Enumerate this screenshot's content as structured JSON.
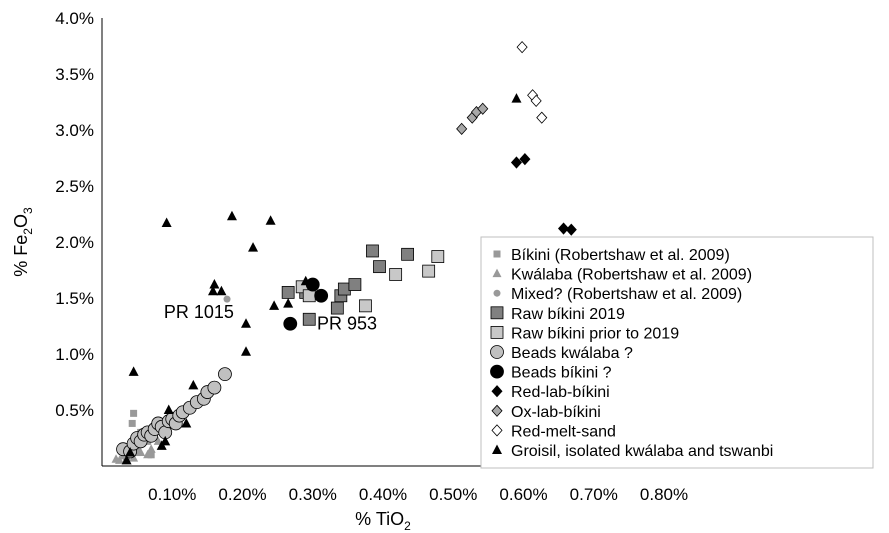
{
  "chart_data": {
    "type": "scatter",
    "xlabel": "% TiO",
    "xlabel_sub": "2",
    "ylabel": "% Fe",
    "ylabel_sub1": "2",
    "ylabel_mid": "O",
    "ylabel_sub2": "3",
    "xlim": [
      0,
      0.8
    ],
    "ylim": [
      0,
      4.0
    ],
    "x_ticks": [
      0.1,
      0.2,
      0.3,
      0.4,
      0.5,
      0.6,
      0.7,
      0.8
    ],
    "x_tick_labels": [
      "0.10%",
      "0.20%",
      "0.30%",
      "0.40%",
      "0.50%",
      "0.60%",
      "0.70%",
      "0.80%"
    ],
    "y_ticks": [
      0.5,
      1.0,
      1.5,
      2.0,
      2.5,
      3.0,
      3.5,
      4.0
    ],
    "y_tick_labels": [
      "0.5%",
      "1.0%",
      "1.5%",
      "2.0%",
      "2.5%",
      "3.0%",
      "3.5%",
      "4.0%"
    ],
    "grid": false,
    "legend_position": "right",
    "annotations": [
      {
        "text": "PR 1015",
        "x": 0.088,
        "y": 1.32
      },
      {
        "text": "PR 953",
        "x": 0.306,
        "y": 1.22
      }
    ],
    "series": [
      {
        "name": "Bíkini (Robertshaw et al. 2009)",
        "marker": "small-square",
        "color": "#999999",
        "points": [
          [
            0.045,
            0.47
          ],
          [
            0.043,
            0.38
          ],
          [
            0.055,
            0.3
          ],
          [
            0.06,
            0.25
          ],
          [
            0.04,
            0.15
          ],
          [
            0.05,
            0.12
          ],
          [
            0.065,
            0.22
          ],
          [
            0.075,
            0.35
          ],
          [
            0.07,
            0.1
          ],
          [
            0.035,
            0.08
          ]
        ]
      },
      {
        "name": "Kwálaba (Robertshaw et al. 2009)",
        "marker": "small-triangle",
        "color": "#999999",
        "points": [
          [
            0.02,
            0.06
          ],
          [
            0.025,
            0.05
          ],
          [
            0.03,
            0.09
          ],
          [
            0.045,
            0.07
          ],
          [
            0.055,
            0.12
          ],
          [
            0.065,
            0.1
          ],
          [
            0.04,
            0.2
          ],
          [
            0.05,
            0.18
          ],
          [
            0.07,
            0.15
          ],
          [
            0.08,
            0.22
          ]
        ]
      },
      {
        "name": "Mixed? (Robertshaw et al. 2009)",
        "marker": "small-circle",
        "color": "#999999",
        "points": [
          [
            0.178,
            1.49
          ]
        ]
      },
      {
        "name": "Raw bíkini 2019",
        "marker": "square",
        "color": "#808080",
        "points": [
          [
            0.265,
            1.55
          ],
          [
            0.29,
            1.55
          ],
          [
            0.295,
            1.31
          ],
          [
            0.335,
            1.41
          ],
          [
            0.34,
            1.52
          ],
          [
            0.345,
            1.58
          ],
          [
            0.36,
            1.62
          ],
          [
            0.385,
            1.92
          ],
          [
            0.395,
            1.78
          ],
          [
            0.435,
            1.89
          ]
        ]
      },
      {
        "name": "Raw bíkini prior to 2019",
        "marker": "square",
        "color": "#c8c8c8",
        "points": [
          [
            0.285,
            1.6
          ],
          [
            0.295,
            1.52
          ],
          [
            0.375,
            1.43
          ],
          [
            0.418,
            1.71
          ],
          [
            0.465,
            1.74
          ],
          [
            0.478,
            1.87
          ]
        ]
      },
      {
        "name": "Beads kwálaba ?",
        "marker": "circle",
        "color": "#c0c0c0",
        "points": [
          [
            0.03,
            0.15
          ],
          [
            0.04,
            0.13
          ],
          [
            0.045,
            0.2
          ],
          [
            0.05,
            0.25
          ],
          [
            0.055,
            0.22
          ],
          [
            0.06,
            0.28
          ],
          [
            0.065,
            0.3
          ],
          [
            0.07,
            0.27
          ],
          [
            0.075,
            0.33
          ],
          [
            0.08,
            0.38
          ],
          [
            0.085,
            0.35
          ],
          [
            0.09,
            0.3
          ],
          [
            0.095,
            0.4
          ],
          [
            0.1,
            0.42
          ],
          [
            0.105,
            0.38
          ],
          [
            0.11,
            0.45
          ],
          [
            0.115,
            0.48
          ],
          [
            0.125,
            0.52
          ],
          [
            0.135,
            0.57
          ],
          [
            0.145,
            0.6
          ],
          [
            0.15,
            0.66
          ],
          [
            0.16,
            0.7
          ],
          [
            0.175,
            0.82
          ]
        ]
      },
      {
        "name": "Beads bíkini ?",
        "marker": "circle",
        "color": "#000000",
        "points": [
          [
            0.268,
            1.27
          ],
          [
            0.3,
            1.62
          ],
          [
            0.312,
            1.52
          ]
        ]
      },
      {
        "name": "Red-lab-bíkini",
        "marker": "diamond",
        "color": "#000000",
        "points": [
          [
            0.59,
            2.71
          ],
          [
            0.602,
            2.74
          ],
          [
            0.657,
            2.12
          ],
          [
            0.668,
            2.11
          ]
        ]
      },
      {
        "name": "Ox-lab-bíkini",
        "marker": "diamond",
        "color": "#a8a8a8",
        "points": [
          [
            0.512,
            3.01
          ],
          [
            0.527,
            3.11
          ],
          [
            0.533,
            3.16
          ],
          [
            0.542,
            3.19
          ]
        ]
      },
      {
        "name": "Red-melt-sand",
        "marker": "diamond",
        "color": "#ffffff",
        "points": [
          [
            0.598,
            3.74
          ],
          [
            0.613,
            3.31
          ],
          [
            0.618,
            3.26
          ],
          [
            0.626,
            3.11
          ]
        ]
      },
      {
        "name": "Groisil, isolated kwálaba and tswanbi",
        "marker": "triangle",
        "color": "#000000",
        "points": [
          [
            0.092,
            2.17
          ],
          [
            0.185,
            2.23
          ],
          [
            0.24,
            2.19
          ],
          [
            0.215,
            1.95
          ],
          [
            0.16,
            1.62
          ],
          [
            0.158,
            1.56
          ],
          [
            0.17,
            1.56
          ],
          [
            0.205,
            1.27
          ],
          [
            0.245,
            1.43
          ],
          [
            0.265,
            1.45
          ],
          [
            0.29,
            1.65
          ],
          [
            0.205,
            1.02
          ],
          [
            0.045,
            0.84
          ],
          [
            0.085,
            0.18
          ],
          [
            0.09,
            0.22
          ],
          [
            0.095,
            0.5
          ],
          [
            0.12,
            0.38
          ],
          [
            0.13,
            0.72
          ],
          [
            0.035,
            0.05
          ],
          [
            0.04,
            0.12
          ],
          [
            0.59,
            3.28
          ]
        ]
      }
    ]
  }
}
